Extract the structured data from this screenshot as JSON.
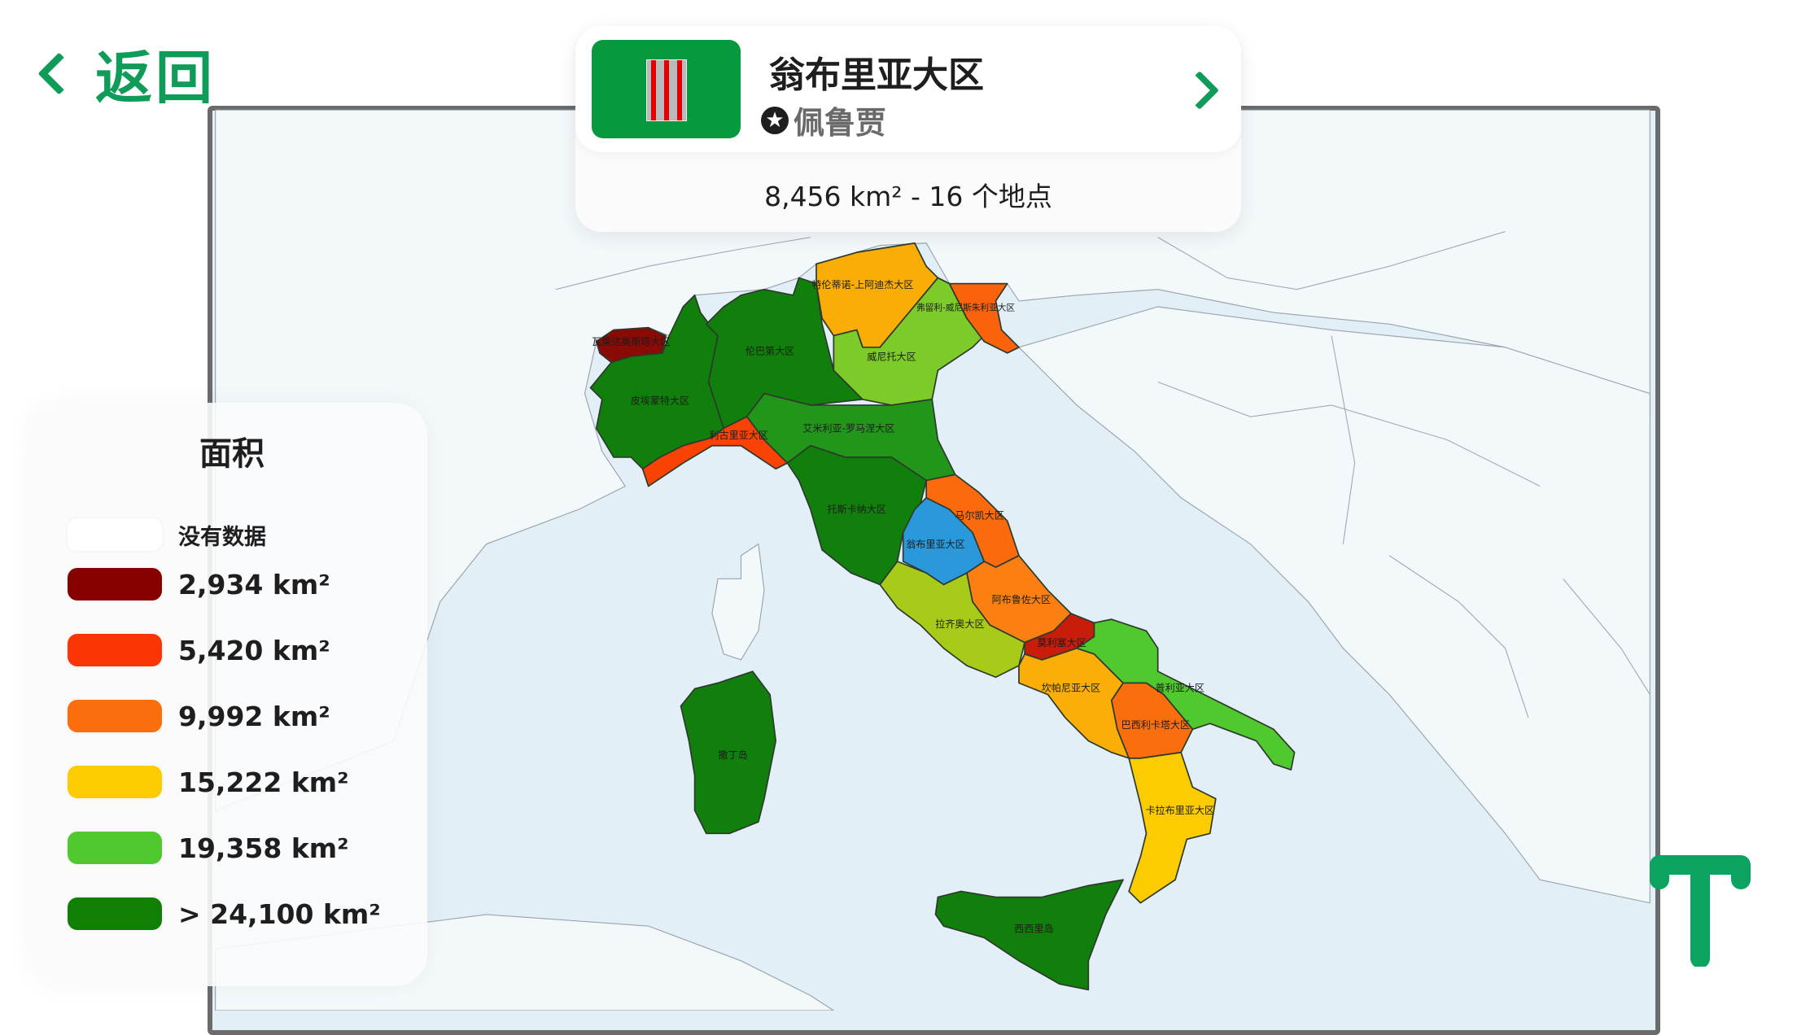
{
  "nav": {
    "back_label": "返回"
  },
  "card": {
    "title": "翁布里亚大区",
    "capital": "佩鲁贾",
    "stats": "8,456 km² - 16 个地点",
    "flag_color": "#07993f"
  },
  "legend": {
    "title": "面积",
    "items": [
      {
        "label": "没有数据",
        "color": "#ffffff"
      },
      {
        "label": "2,934 km²",
        "color": "#860000"
      },
      {
        "label": "5,420 km²",
        "color": "#fb3503"
      },
      {
        "label": "9,992 km²",
        "color": "#fb6e0e"
      },
      {
        "label": "15,222 km²",
        "color": "#fccc00"
      },
      {
        "label": "19,358 km²",
        "color": "#4fc92e"
      },
      {
        "label": "> 24,100 km²",
        "color": "#107f05"
      }
    ]
  },
  "map": {
    "selected_color": "#2a99dc",
    "regions": [
      {
        "name": "瓦莱达奥斯塔大区",
        "color": "#8a0a05"
      },
      {
        "name": "皮埃蒙特大区",
        "color": "#117f0b"
      },
      {
        "name": "伦巴第大区",
        "color": "#117f0b"
      },
      {
        "name": "特伦蒂诺-上阿迪杰大区",
        "color": "#fbad07"
      },
      {
        "name": "威尼托大区",
        "color": "#7ccb28"
      },
      {
        "name": "弗留利-威尼斯朱利亚大区",
        "color": "#fa620c"
      },
      {
        "name": "艾米利亚-罗马涅大区",
        "color": "#22961a"
      },
      {
        "name": "利古里亚大区",
        "color": "#fb4205"
      },
      {
        "name": "托斯卡纳大区",
        "color": "#117f0b"
      },
      {
        "name": "翁布里亚大区",
        "color": "#2a99dc"
      },
      {
        "name": "马尔凯大区",
        "color": "#fb6a0c"
      },
      {
        "name": "阿布鲁佐大区",
        "color": "#fb7f12"
      },
      {
        "name": "拉齐奥大区",
        "color": "#a8cb1a"
      },
      {
        "name": "莫利塞大区",
        "color": "#c91d0b"
      },
      {
        "name": "坎帕尼亚大区",
        "color": "#fbae07"
      },
      {
        "name": "普利亚大区",
        "color": "#4fc92e"
      },
      {
        "name": "巴西利卡塔大区",
        "color": "#fb6e0e"
      },
      {
        "name": "卡拉布里亚大区",
        "color": "#fccc00"
      },
      {
        "name": "西西里岛",
        "color": "#117f0b"
      },
      {
        "name": "撒丁岛",
        "color": "#117f0b"
      }
    ]
  }
}
